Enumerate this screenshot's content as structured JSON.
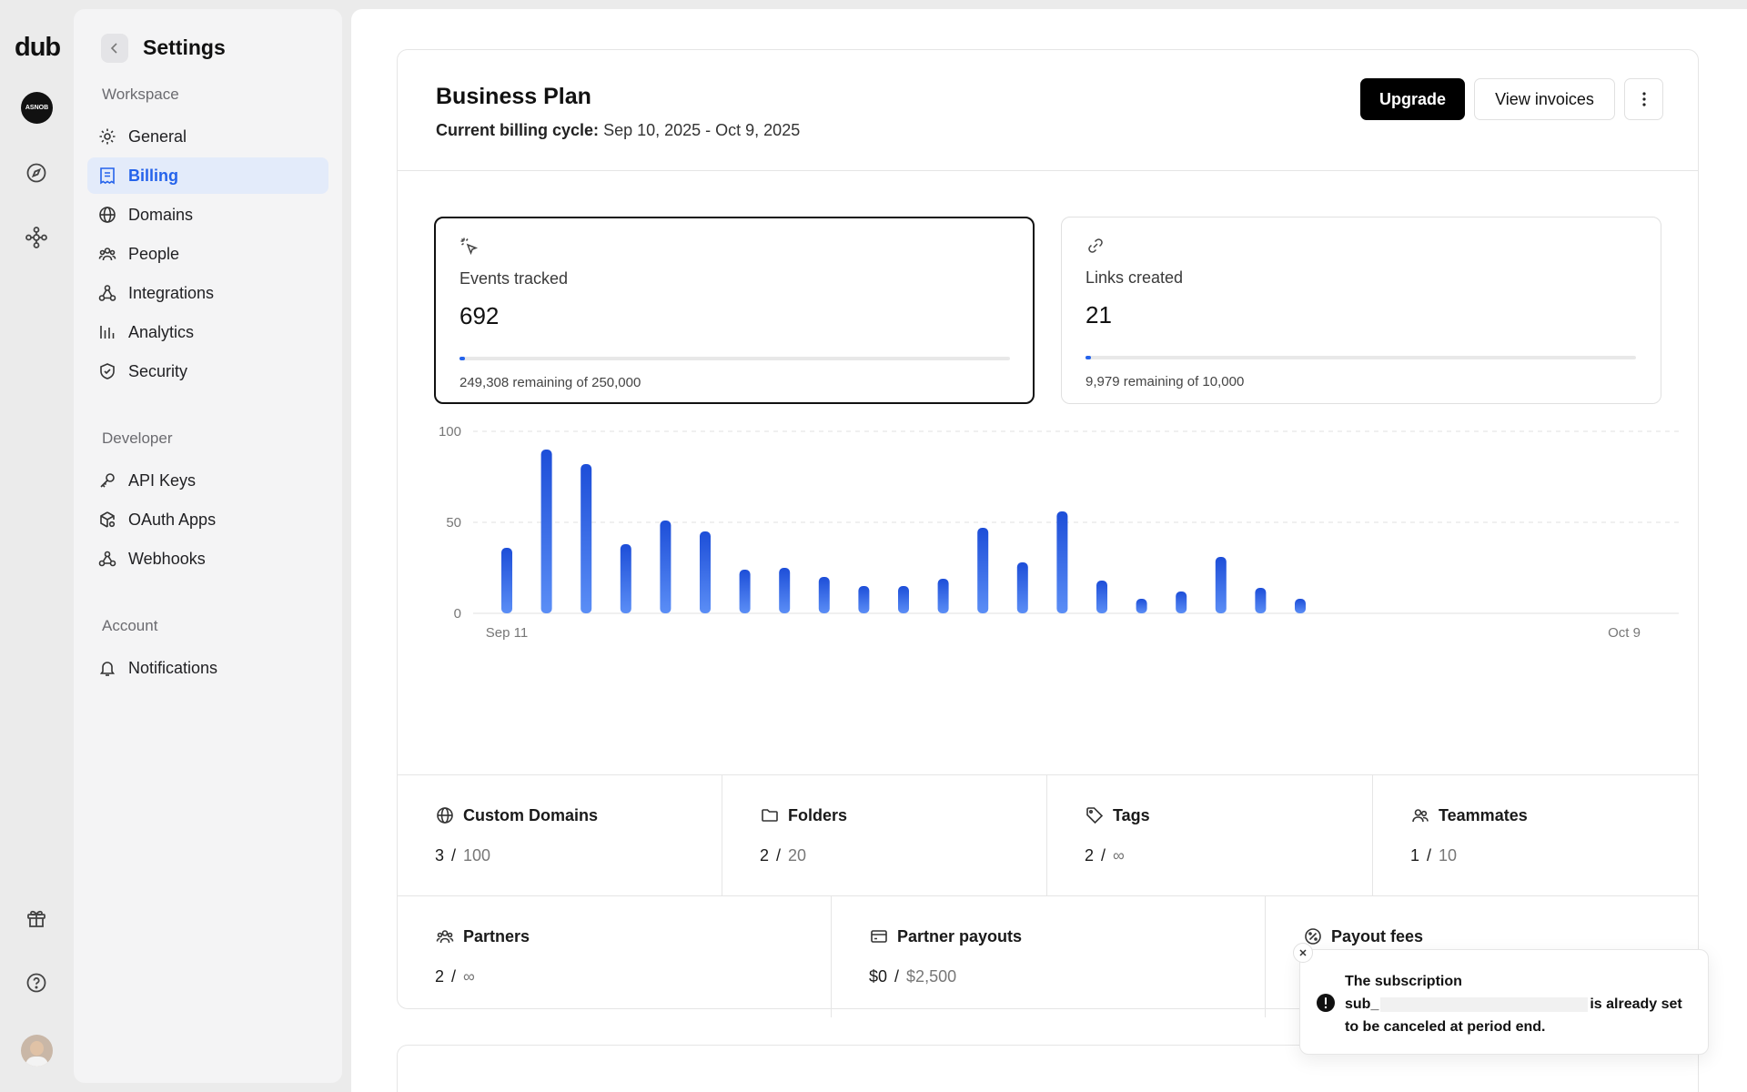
{
  "app": {
    "logo": "dub",
    "workspace_avatar": "ASNOB"
  },
  "sidebar": {
    "title": "Settings",
    "groups": {
      "workspace": "Workspace",
      "developer": "Developer",
      "account": "Account"
    },
    "items": [
      {
        "label": "General",
        "icon": "gear-icon"
      },
      {
        "label": "Billing",
        "icon": "receipt-icon",
        "active": true
      },
      {
        "label": "Domains",
        "icon": "globe-icon"
      },
      {
        "label": "People",
        "icon": "users-icon"
      },
      {
        "label": "Integrations",
        "icon": "integrations-icon"
      },
      {
        "label": "Analytics",
        "icon": "analytics-icon"
      },
      {
        "label": "Security",
        "icon": "shield-icon"
      },
      {
        "label": "API Keys",
        "icon": "key-icon"
      },
      {
        "label": "OAuth Apps",
        "icon": "cube-settings-icon"
      },
      {
        "label": "Webhooks",
        "icon": "webhook-icon"
      },
      {
        "label": "Notifications",
        "icon": "bell-icon"
      }
    ]
  },
  "plan": {
    "title": "Business Plan",
    "cycle_label": "Current billing cycle:",
    "cycle_value": "Sep 10, 2025 - Oct 9, 2025",
    "upgrade_label": "Upgrade",
    "invoices_label": "View invoices"
  },
  "usage": {
    "events": {
      "label": "Events tracked",
      "value": "692",
      "remaining": "249,308 remaining of 250,000",
      "fraction": 0.0028
    },
    "links": {
      "label": "Links created",
      "value": "21",
      "remaining": "9,979 remaining of 10,000",
      "fraction": 0.0021
    }
  },
  "chart_data": {
    "type": "bar",
    "x_start_label": "Sep 11",
    "x_end_label": "Oct 9",
    "ylim": [
      0,
      100
    ],
    "yticks": [
      0,
      50,
      100
    ],
    "ytick_labels": [
      "0",
      "50",
      "100"
    ],
    "grid": true,
    "values": [
      36,
      90,
      82,
      38,
      51,
      45,
      24,
      25,
      20,
      15,
      15,
      19,
      47,
      28,
      56,
      18,
      8,
      12,
      31,
      14,
      8,
      0,
      0,
      0,
      0,
      0,
      0,
      0,
      0
    ],
    "color": "#2563eb"
  },
  "stats": {
    "row1": [
      {
        "label": "Custom Domains",
        "icon": "globe-icon",
        "used": "3",
        "limit": "100"
      },
      {
        "label": "Folders",
        "icon": "folder-icon",
        "used": "2",
        "limit": "20"
      },
      {
        "label": "Tags",
        "icon": "tag-icon",
        "used": "2",
        "limit": "∞"
      },
      {
        "label": "Teammates",
        "icon": "users-icon",
        "used": "1",
        "limit": "10"
      }
    ],
    "row2": [
      {
        "label": "Partners",
        "icon": "users-icon",
        "used": "2",
        "limit": "∞"
      },
      {
        "label": "Partner payouts",
        "icon": "credit-card-icon",
        "used": "$0",
        "limit": "$2,500"
      },
      {
        "label": "Payout fees",
        "icon": "percent-icon",
        "used": "",
        "limit": ""
      }
    ]
  },
  "toast": {
    "line1": "The subscription",
    "prefix": "sub_",
    "suffix": "is already set",
    "line3": "to be canceled at period end."
  },
  "colors": {
    "accent": "#2563eb",
    "active_bg": "#e3ebfa"
  }
}
